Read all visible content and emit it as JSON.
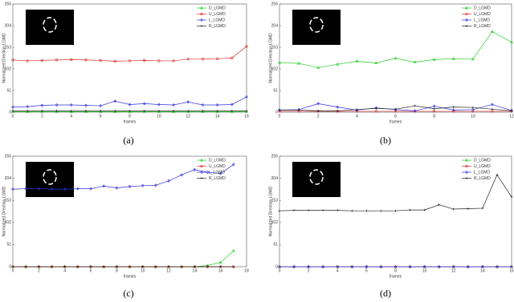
{
  "chart_data": [
    {
      "type": "line",
      "caption": "(a)",
      "x_label": "frames",
      "y_label": "Normalized Direction LGMD",
      "x": [
        0,
        1,
        2,
        3,
        4,
        5,
        6,
        7,
        8,
        9,
        10,
        11,
        12,
        13,
        14,
        15,
        16
      ],
      "xlim": [
        0,
        16
      ],
      "xticks": [
        0,
        2,
        4,
        6,
        8,
        10,
        12,
        14,
        16
      ],
      "ylim": [
        0,
        255
      ],
      "yticks": [
        0,
        51,
        102,
        153,
        204,
        255
      ],
      "legend": "upper right",
      "series": [
        {
          "name": "D_LGMD",
          "color": "#22cc22",
          "values": [
            1,
            1,
            1,
            1,
            1,
            1,
            1,
            1,
            1,
            1,
            1,
            1,
            1,
            1,
            1,
            1,
            1
          ]
        },
        {
          "name": "U_LGMD",
          "color": "#e03030",
          "values": [
            123,
            121,
            122,
            123,
            124,
            123,
            122,
            120,
            121,
            122,
            121,
            121,
            125,
            125,
            126,
            128,
            155
          ]
        },
        {
          "name": "L_LGMD",
          "color": "#3030e0",
          "values": [
            12,
            13,
            16,
            17,
            17,
            16,
            15,
            26,
            18,
            20,
            18,
            17,
            24,
            17,
            17,
            18,
            36
          ]
        },
        {
          "name": "R_LGMD",
          "color": "#222222",
          "values": [
            3,
            3,
            3,
            3,
            3,
            3,
            3,
            3,
            3,
            3,
            3,
            3,
            3,
            3,
            3,
            3,
            3
          ]
        }
      ]
    },
    {
      "type": "line",
      "caption": "(b)",
      "x_label": "frames",
      "y_label": "Normalized Direction LGMD",
      "x": [
        0,
        1,
        2,
        3,
        4,
        5,
        6,
        7,
        8,
        9,
        10,
        11,
        12
      ],
      "xlim": [
        0,
        12
      ],
      "xticks": [
        0,
        2,
        4,
        6,
        8,
        10,
        12
      ],
      "ylim": [
        0,
        255
      ],
      "yticks": [
        0,
        51,
        102,
        153,
        204,
        255
      ],
      "legend": "upper right",
      "series": [
        {
          "name": "D_LGMD",
          "color": "#22cc22",
          "values": [
            117,
            115,
            105,
            113,
            120,
            116,
            127,
            118,
            124,
            126,
            125,
            190,
            165
          ]
        },
        {
          "name": "U_LGMD",
          "color": "#e03030",
          "values": [
            2,
            2,
            2,
            2,
            2,
            2,
            2,
            2,
            2,
            2,
            2,
            2,
            2
          ]
        },
        {
          "name": "L_LGMD",
          "color": "#3030e0",
          "values": [
            5,
            6,
            20,
            12,
            5,
            10,
            6,
            3,
            14,
            5,
            6,
            18,
            4
          ]
        },
        {
          "name": "R_LGMD",
          "color": "#222222",
          "values": [
            5,
            5,
            3,
            3,
            6,
            9,
            7,
            15,
            8,
            12,
            11,
            7,
            3
          ]
        }
      ]
    },
    {
      "type": "line",
      "caption": "(c)",
      "x_label": "frames",
      "y_label": "Normalized Direction LGMD",
      "x": [
        0,
        1,
        2,
        3,
        4,
        5,
        6,
        7,
        8,
        9,
        10,
        11,
        12,
        13,
        14,
        15,
        16,
        17
      ],
      "xlim": [
        0,
        18
      ],
      "xticks": [
        0,
        2,
        4,
        6,
        8,
        10,
        12,
        14,
        16,
        18
      ],
      "ylim": [
        0,
        255
      ],
      "yticks": [
        0,
        51,
        102,
        153,
        204,
        255
      ],
      "legend": "upper right",
      "series": [
        {
          "name": "D_LGMD",
          "color": "#22cc22",
          "values": [
            0,
            0,
            0,
            0,
            0,
            0,
            0,
            0,
            0,
            0,
            0,
            0,
            0,
            0,
            0,
            3,
            10,
            37
          ]
        },
        {
          "name": "U_LGMD",
          "color": "#e03030",
          "values": [
            0,
            0,
            0,
            0,
            0,
            0,
            0,
            0,
            0,
            0,
            0,
            0,
            0,
            0,
            0,
            0,
            0,
            0
          ]
        },
        {
          "name": "L_LGMD",
          "color": "#3030e0",
          "values": [
            179,
            180,
            180,
            179,
            179,
            180,
            180,
            186,
            182,
            185,
            187,
            188,
            198,
            212,
            224,
            218,
            215,
            236
          ]
        },
        {
          "name": "R_LGMD",
          "color": "#222222",
          "values": [
            0,
            0,
            0,
            0,
            0,
            0,
            0,
            0,
            0,
            0,
            0,
            0,
            0,
            0,
            0,
            0,
            0,
            0
          ]
        }
      ]
    },
    {
      "type": "line",
      "caption": "(d)",
      "x_label": "frames",
      "y_label": "Normalized Direction LGMD",
      "x": [
        0,
        1,
        2,
        3,
        4,
        5,
        6,
        7,
        8,
        9,
        10,
        11,
        12,
        13,
        14,
        15,
        16
      ],
      "xlim": [
        0,
        16
      ],
      "xticks": [
        0,
        2,
        4,
        6,
        8,
        10,
        12,
        14,
        16
      ],
      "ylim": [
        0,
        255
      ],
      "yticks": [
        0,
        51,
        102,
        153,
        204,
        255
      ],
      "legend": "upper right",
      "series": [
        {
          "name": "D_LGMD",
          "color": "#22cc22",
          "values": [
            0,
            0,
            0,
            0,
            0,
            0,
            0,
            0,
            0,
            0,
            0,
            0,
            0,
            0,
            0,
            0,
            0
          ]
        },
        {
          "name": "U_LGMD",
          "color": "#e03030",
          "values": [
            0,
            0,
            0,
            0,
            0,
            0,
            0,
            0,
            0,
            0,
            0,
            0,
            0,
            0,
            0,
            0,
            0
          ]
        },
        {
          "name": "L_LGMD",
          "color": "#3030e0",
          "values": [
            0,
            0,
            0,
            0,
            0,
            0,
            0,
            0,
            0,
            0,
            0,
            0,
            0,
            0,
            0,
            0,
            0
          ]
        },
        {
          "name": "R_LGMD",
          "color": "#222222",
          "values": [
            129,
            130,
            130,
            130,
            130,
            129,
            129,
            129,
            129,
            131,
            131,
            143,
            133,
            134,
            135,
            212,
            161
          ]
        }
      ]
    }
  ]
}
